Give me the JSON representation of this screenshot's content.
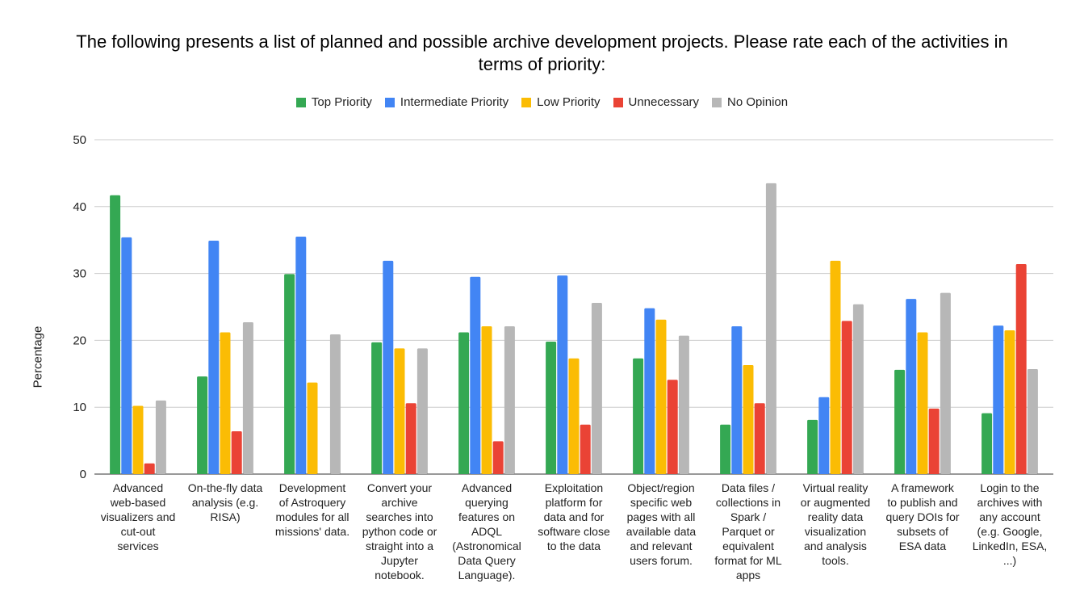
{
  "chart_data": {
    "type": "bar",
    "title_lines": [
      "The following presents a list of planned and possible archive development projects. Please rate each of the activities in",
      "terms of priority:"
    ],
    "xlabel": "",
    "ylabel": "Percentage",
    "ylim": [
      0,
      50
    ],
    "yticks": [
      0,
      10,
      20,
      30,
      40,
      50
    ],
    "grid": true,
    "legend_position": "top",
    "categories": [
      [
        "Advanced",
        "web-based",
        "visualizers and",
        "cut-out",
        "services"
      ],
      [
        "On-the-fly data",
        "analysis (e.g.",
        "RISA)"
      ],
      [
        "Development",
        "of Astroquery",
        "modules for all",
        "missions' data."
      ],
      [
        "Convert your",
        "archive",
        "searches into",
        "python code or",
        "straight into a",
        "Jupyter",
        "notebook."
      ],
      [
        "Advanced",
        "querying",
        "features on",
        "ADQL",
        "(Astronomical",
        "Data Query",
        "Language)."
      ],
      [
        "Exploitation",
        "platform for",
        "data and for",
        "software close",
        "to the data"
      ],
      [
        "Object/region",
        "specific web",
        "pages with all",
        "available data",
        "and relevant",
        "users forum."
      ],
      [
        "Data files /",
        "collections in",
        "Spark /",
        "Parquet or",
        "equivalent",
        "format for ML",
        "apps"
      ],
      [
        "Virtual reality",
        "or augmented",
        "reality data",
        "visualization",
        "and analysis",
        "tools."
      ],
      [
        "A framework",
        "to publish and",
        "query DOIs for",
        "subsets of",
        "ESA data"
      ],
      [
        "Login to the",
        "archives with",
        "any account",
        "(e.g. Google,",
        "LinkedIn, ESA,",
        "...)"
      ]
    ],
    "series": [
      {
        "name": "Top Priority",
        "color": "#34a853",
        "values": [
          41.7,
          14.6,
          29.9,
          19.7,
          21.2,
          19.8,
          17.3,
          7.4,
          8.1,
          15.6,
          9.1
        ]
      },
      {
        "name": "Intermediate Priority",
        "color": "#4285f4",
        "values": [
          35.4,
          34.9,
          35.5,
          31.9,
          29.5,
          29.7,
          24.8,
          22.1,
          11.5,
          26.2,
          22.2
        ]
      },
      {
        "name": "Low Priority",
        "color": "#fbbc04",
        "values": [
          10.2,
          21.2,
          13.7,
          18.8,
          22.1,
          17.3,
          23.1,
          16.3,
          31.9,
          21.2,
          21.5
        ]
      },
      {
        "name": "Unnecessary",
        "color": "#ea4335",
        "values": [
          1.6,
          6.4,
          0,
          10.6,
          4.9,
          7.4,
          14.1,
          10.6,
          22.9,
          9.8,
          31.4
        ]
      },
      {
        "name": "No Opinion",
        "color": "#b7b7b7",
        "values": [
          11.0,
          22.7,
          20.9,
          18.8,
          22.1,
          25.6,
          20.7,
          43.5,
          25.4,
          27.1,
          15.7
        ]
      }
    ]
  }
}
